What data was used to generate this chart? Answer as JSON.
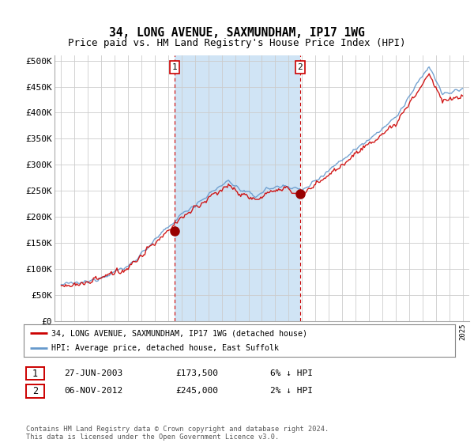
{
  "title": "34, LONG AVENUE, SAXMUNDHAM, IP17 1WG",
  "subtitle": "Price paid vs. HM Land Registry's House Price Index (HPI)",
  "bg_color": "#e8f0f8",
  "highlight_color": "#d0e4f5",
  "grid_color": "#cccccc",
  "line_color_hpi": "#6699cc",
  "line_color_price": "#cc0000",
  "transaction1_x": 2003.49,
  "transaction1_y": 173500,
  "transaction2_x": 2012.85,
  "transaction2_y": 245000,
  "legend_label1": "34, LONG AVENUE, SAXMUNDHAM, IP17 1WG (detached house)",
  "legend_label2": "HPI: Average price, detached house, East Suffolk",
  "table_row1": [
    "1",
    "27-JUN-2003",
    "£173,500",
    "6% ↓ HPI"
  ],
  "table_row2": [
    "2",
    "06-NOV-2012",
    "£245,000",
    "2% ↓ HPI"
  ],
  "footer": "Contains HM Land Registry data © Crown copyright and database right 2024.\nThis data is licensed under the Open Government Licence v3.0.",
  "title_fontsize": 10.5,
  "subtitle_fontsize": 9,
  "tick_fontsize": 8,
  "yticks": [
    0,
    50000,
    100000,
    150000,
    200000,
    250000,
    300000,
    350000,
    400000,
    450000,
    500000
  ],
  "ytick_labels": [
    "£0",
    "£50K",
    "£100K",
    "£150K",
    "£200K",
    "£250K",
    "£300K",
    "£350K",
    "£400K",
    "£450K",
    "£500K"
  ],
  "xlim_left": 1994.5,
  "xlim_right": 2025.5,
  "ylim_bottom": 0,
  "ylim_top": 510000
}
